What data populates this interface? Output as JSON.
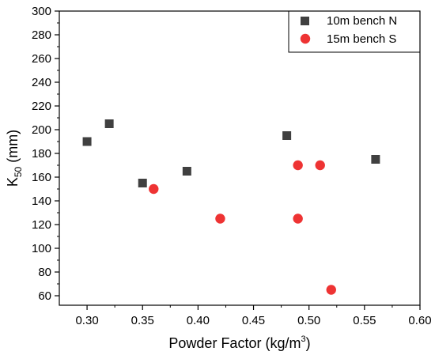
{
  "chart_data": {
    "type": "scatter",
    "title": "",
    "xlabel": "Powder Factor (kg/m",
    "xlabel_sup": "3",
    "xlabel_tail": ")",
    "ylabel_main": "K",
    "ylabel_sub": "50",
    "ylabel_tail": " (mm)",
    "xlim": [
      0.275,
      0.6
    ],
    "ylim": [
      52,
      300
    ],
    "x_ticks": [
      0.3,
      0.35,
      0.4,
      0.45,
      0.5,
      0.55,
      0.6
    ],
    "x_tick_labels": [
      "0.30",
      "0.35",
      "0.40",
      "0.45",
      "0.50",
      "0.55",
      "0.60"
    ],
    "y_ticks": [
      60,
      80,
      100,
      120,
      140,
      160,
      180,
      200,
      220,
      240,
      260,
      280,
      300
    ],
    "y_tick_labels": [
      "60",
      "80",
      "100",
      "120",
      "140",
      "160",
      "180",
      "200",
      "220",
      "240",
      "260",
      "280",
      "300"
    ],
    "grid": false,
    "legend_position": "top-right",
    "series": [
      {
        "name": "10m bench N",
        "marker": "square",
        "color": "#404040",
        "x": [
          0.3,
          0.32,
          0.35,
          0.39,
          0.48,
          0.56
        ],
        "y": [
          190,
          205,
          155,
          165,
          195,
          175
        ]
      },
      {
        "name": "15m bench S",
        "marker": "circle",
        "color": "#ee3333",
        "x": [
          0.36,
          0.42,
          0.49,
          0.49,
          0.51,
          0.52
        ],
        "y": [
          150,
          125,
          170,
          125,
          170,
          65
        ]
      }
    ]
  }
}
